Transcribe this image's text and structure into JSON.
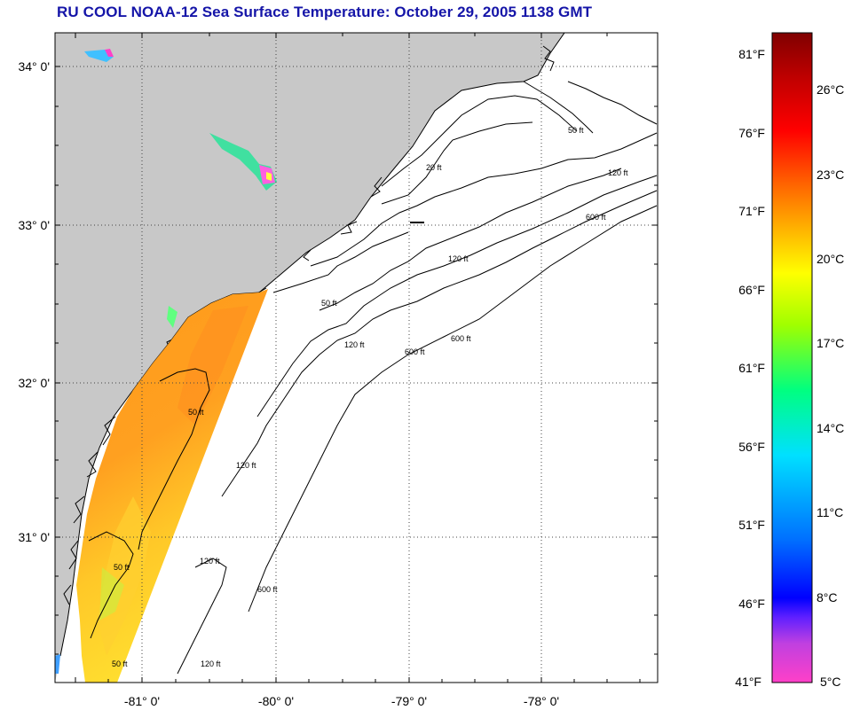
{
  "title": "RU COOL  NOAA-12  Sea Surface Temperature:  October 29, 2005 1138 GMT",
  "map": {
    "lat_labels": [
      "34° 0'",
      "33° 0'",
      "32° 0'",
      "31° 0'"
    ],
    "lon_labels": [
      "-81° 0'",
      "-80° 0'",
      "-79° 0'",
      "-78° 0'"
    ],
    "contour_labels": [
      {
        "id": "c50a",
        "text": "50 ft"
      },
      {
        "id": "c120a",
        "text": "120 ft"
      },
      {
        "id": "c600a",
        "text": "600 ft"
      },
      {
        "id": "c20a",
        "text": "20 ft"
      },
      {
        "id": "c120b",
        "text": "120 ft"
      },
      {
        "id": "c50b",
        "text": "50 ft"
      },
      {
        "id": "c120c",
        "text": "120 ft"
      },
      {
        "id": "c600b",
        "text": "600 ft"
      },
      {
        "id": "c50c",
        "text": "50 ft"
      },
      {
        "id": "c120d",
        "text": "120 ft"
      },
      {
        "id": "c600c",
        "text": "600 ft"
      },
      {
        "id": "c50d",
        "text": "50 ft"
      },
      {
        "id": "c120e",
        "text": "120 ft"
      },
      {
        "id": "c600d",
        "text": "600 ft"
      },
      {
        "id": "c120f",
        "text": "120 ft"
      },
      {
        "id": "c50e",
        "text": "50 ft"
      }
    ],
    "colors": {
      "land": "#c8c8c8",
      "ocean": "#ffffff",
      "contour": "#000000",
      "grid": "#444444"
    }
  },
  "colorbar": {
    "fahrenheit": [
      "81°F",
      "76°F",
      "71°F",
      "66°F",
      "61°F",
      "56°F",
      "51°F",
      "46°F",
      "41°F"
    ],
    "celsius": [
      "26°C",
      "23°C",
      "20°C",
      "17°C",
      "14°C",
      "11°C",
      "8°C",
      "5°C"
    ],
    "range_f": [
      41,
      83
    ],
    "stops": [
      "#ff40c8",
      "#c040e0",
      "#6020ff",
      "#0000ff",
      "#0070ff",
      "#00e0ff",
      "#00ff80",
      "#a0ff00",
      "#ffff00",
      "#ffb000",
      "#ff6000",
      "#ff0000",
      "#c00000",
      "#800000"
    ]
  }
}
